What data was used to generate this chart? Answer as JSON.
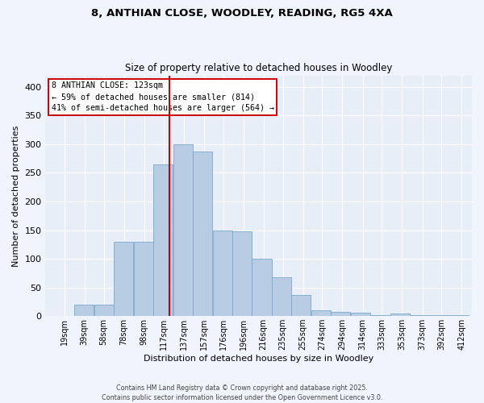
{
  "title_line1": "8, ANTHIAN CLOSE, WOODLEY, READING, RG5 4XA",
  "title_line2": "Size of property relative to detached houses in Woodley",
  "xlabel": "Distribution of detached houses by size in Woodley",
  "ylabel": "Number of detached properties",
  "tick_labels": [
    "19sqm",
    "39sqm",
    "58sqm",
    "78sqm",
    "98sqm",
    "117sqm",
    "137sqm",
    "157sqm",
    "176sqm",
    "196sqm",
    "216sqm",
    "235sqm",
    "255sqm",
    "274sqm",
    "294sqm",
    "314sqm",
    "333sqm",
    "353sqm",
    "373sqm",
    "392sqm",
    "412sqm"
  ],
  "tick_positions": [
    19,
    39,
    58,
    78,
    98,
    117,
    137,
    157,
    176,
    196,
    216,
    235,
    255,
    274,
    294,
    314,
    333,
    353,
    373,
    392,
    412
  ],
  "bar_lefts": [
    9.5,
    29,
    48.5,
    68,
    87.5,
    107,
    126.5,
    146,
    165.5,
    185,
    204.5,
    224,
    243.5,
    263,
    282.5,
    302,
    321.5,
    341,
    360.5,
    380,
    399.5
  ],
  "bar_width": 19.5,
  "bar_heights": [
    0,
    20,
    20,
    130,
    130,
    265,
    300,
    287,
    150,
    148,
    100,
    68,
    37,
    10,
    7,
    6,
    2,
    5,
    2,
    1,
    1
  ],
  "property_size": 123,
  "annotation_text": "8 ANTHIAN CLOSE: 123sqm\n← 59% of detached houses are smaller (814)\n41% of semi-detached houses are larger (564) →",
  "vline_color": "#cc0000",
  "bar_color": "#b8cce4",
  "bar_edge_color": "#7aa8cc",
  "bg_color": "#e8eef8",
  "grid_color": "#ffffff",
  "fig_bg_color": "#f0f4fc",
  "annotation_box_color": "#cc0000",
  "footer_text": "Contains HM Land Registry data © Crown copyright and database right 2025.\nContains public sector information licensed under the Open Government Licence v3.0.",
  "ylim": [
    0,
    420
  ],
  "yticks": [
    0,
    50,
    100,
    150,
    200,
    250,
    300,
    350,
    400
  ],
  "xlim_left": 0,
  "xlim_right": 422
}
